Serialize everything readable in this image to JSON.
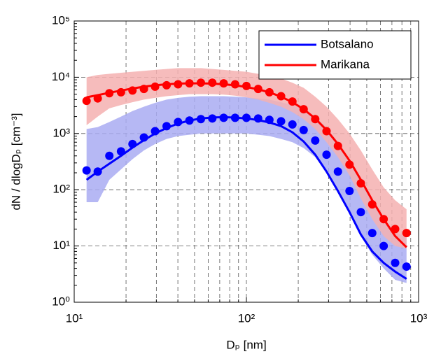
{
  "chart_data": {
    "type": "line",
    "xlabel": "Dₚ [nm]",
    "ylabel": "dN / dlogDₚ [cm⁻³]",
    "xscale": "log",
    "yscale": "log",
    "grid": true,
    "legend": "upper right",
    "xlim": [
      10,
      1000
    ],
    "ylim": [
      1,
      100000
    ],
    "xticks": [
      {
        "value": 10,
        "label": "10¹"
      },
      {
        "value": 100,
        "label": "10²"
      },
      {
        "value": 1000,
        "label": "10³"
      }
    ],
    "yticks": [
      {
        "value": 1,
        "label": "10⁰"
      },
      {
        "value": 10,
        "label": "10¹"
      },
      {
        "value": 100,
        "label": "10²"
      },
      {
        "value": 1000,
        "label": "10³"
      },
      {
        "value": 10000,
        "label": "10⁴"
      },
      {
        "value": 100000,
        "label": "10⁵"
      }
    ],
    "xminorticks": [
      20,
      30,
      40,
      50,
      60,
      70,
      80,
      90,
      200,
      300,
      400,
      500,
      600,
      700,
      800,
      900
    ],
    "yminorticks": [
      2,
      3,
      4,
      5,
      6,
      7,
      8,
      9,
      20,
      30,
      40,
      50,
      60,
      70,
      80,
      90,
      200,
      300,
      400,
      500,
      600,
      700,
      800,
      900,
      2000,
      3000,
      4000,
      5000,
      6000,
      7000,
      8000,
      9000,
      20000,
      30000,
      40000,
      50000,
      60000,
      70000,
      80000,
      90000
    ],
    "x": [
      11.8,
      13.7,
      16.0,
      18.7,
      21.8,
      25.4,
      29.5,
      34.4,
      40.1,
      46.7,
      54.4,
      63.4,
      73.8,
      86.0,
      100,
      117,
      136,
      159,
      185,
      215,
      251,
      292,
      340,
      397,
      462,
      538,
      627,
      731,
      851
    ],
    "series": [
      {
        "name": "Botsalano",
        "color": "#0000ff",
        "band_color": "#a9acf2",
        "values": [
          220,
          210,
          400,
          480,
          650,
          850,
          1100,
          1350,
          1600,
          1700,
          1800,
          1850,
          1900,
          1900,
          1900,
          1850,
          1750,
          1650,
          1450,
          1150,
          750,
          420,
          210,
          95,
          40,
          17,
          10,
          5,
          4.3
        ],
        "fit": [
          150,
          210,
          290,
          400,
          560,
          760,
          1000,
          1250,
          1500,
          1700,
          1850,
          1930,
          1950,
          1920,
          1850,
          1730,
          1570,
          1350,
          1050,
          720,
          420,
          210,
          95,
          40,
          16,
          8,
          5,
          3.5,
          2.6
        ],
        "upper": [
          1200,
          1300,
          1600,
          2000,
          2500,
          3000,
          3500,
          4000,
          4300,
          4500,
          4600,
          4600,
          4600,
          4500,
          4400,
          4200,
          4000,
          3600,
          3200,
          2600,
          2000,
          1300,
          700,
          350,
          150,
          70,
          30,
          18,
          14
        ],
        "lower": [
          60,
          60,
          150,
          230,
          350,
          500,
          650,
          800,
          900,
          950,
          1000,
          1000,
          1000,
          1000,
          1000,
          950,
          900,
          800,
          700,
          550,
          380,
          200,
          100,
          40,
          15,
          7,
          4,
          2.5,
          2.2
        ]
      },
      {
        "name": "Marikana",
        "color": "#ff0000",
        "band_color": "#f5b0b0",
        "values": [
          3800,
          4200,
          5200,
          5400,
          5800,
          6200,
          6800,
          7200,
          7500,
          7800,
          8000,
          8000,
          7800,
          7500,
          7000,
          6200,
          5400,
          4600,
          3700,
          2700,
          1800,
          1100,
          600,
          280,
          130,
          55,
          30,
          20,
          17
        ],
        "fit": [
          4400,
          4800,
          5300,
          5800,
          6300,
          6800,
          7200,
          7500,
          7700,
          7800,
          7800,
          7700,
          7500,
          7200,
          6700,
          6100,
          5400,
          4500,
          3600,
          2700,
          1850,
          1150,
          650,
          330,
          150,
          65,
          30,
          15,
          9.5
        ],
        "upper": [
          10000,
          11000,
          11500,
          12000,
          12500,
          13000,
          13500,
          14000,
          14500,
          14500,
          14500,
          14000,
          13500,
          13000,
          12500,
          11500,
          10500,
          9500,
          8000,
          6500,
          4500,
          3000,
          1800,
          1000,
          500,
          230,
          110,
          65,
          45
        ],
        "lower": [
          1400,
          2000,
          2800,
          3200,
          3600,
          4000,
          4300,
          4600,
          4800,
          5000,
          5000,
          5000,
          4900,
          4700,
          4400,
          4000,
          3500,
          3000,
          2400,
          1800,
          1200,
          700,
          380,
          180,
          70,
          30,
          15,
          10,
          9
        ]
      }
    ]
  }
}
